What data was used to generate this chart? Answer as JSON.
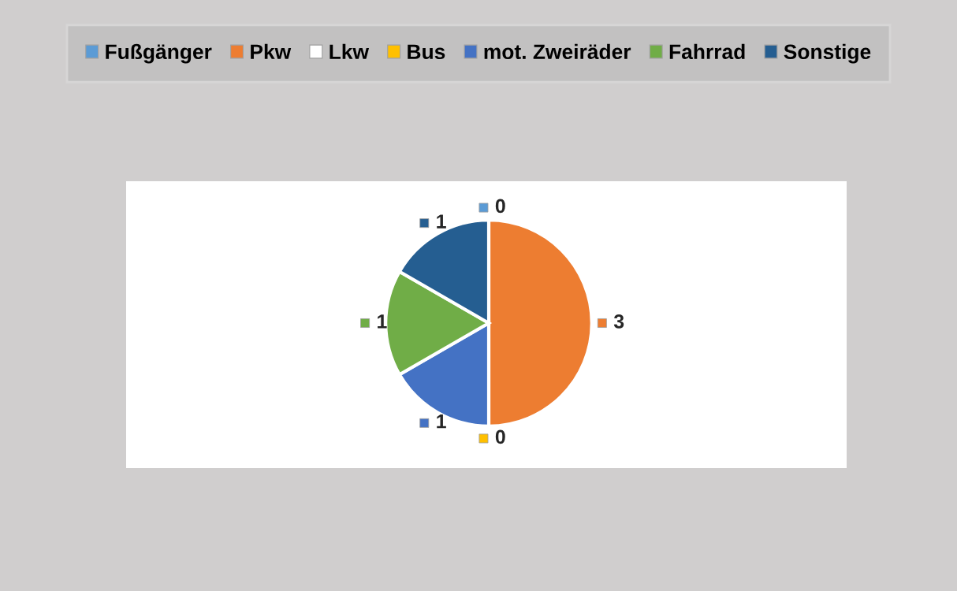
{
  "chart_data": {
    "type": "pie",
    "categories": [
      "Fußgänger",
      "Pkw",
      "Lkw",
      "Bus",
      "mot. Zweiräder",
      "Fahrrad",
      "Sonstige"
    ],
    "values": [
      0,
      3,
      0,
      0,
      1,
      1,
      1
    ],
    "colors": [
      "#5b9bd5",
      "#ed7d31",
      "#ffffff",
      "#ffc000",
      "#4472c4",
      "#70ad47",
      "#255e91"
    ],
    "value_labels": [
      "0",
      "3",
      null,
      "0",
      "1",
      "1",
      "1"
    ],
    "legend": "top"
  }
}
